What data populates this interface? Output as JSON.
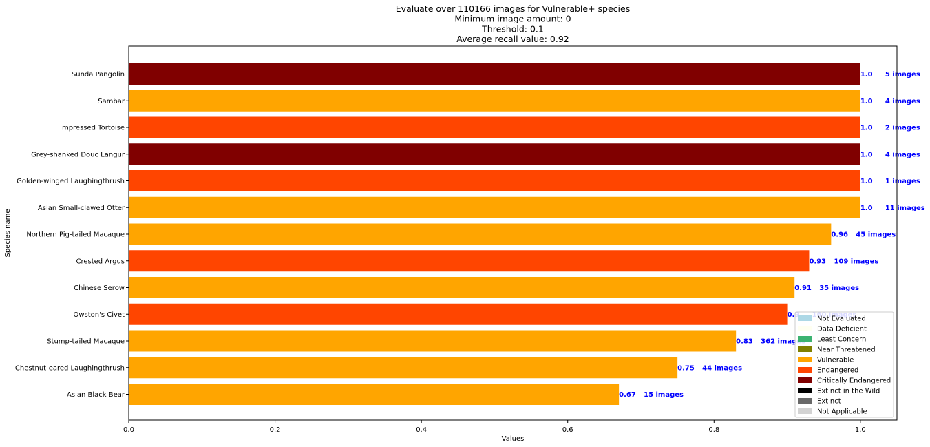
{
  "chart_data": {
    "type": "bar",
    "orientation": "horizontal",
    "title_lines": [
      "Evaluate over 110166 images for Vulnerable+ species",
      "Minimum image amount: 0",
      "Threshold:  0.1",
      "Average recall value: 0.92"
    ],
    "xlabel": "Values",
    "ylabel": "Species name",
    "xlim": [
      0,
      1.05
    ],
    "xticks": [
      0.0,
      0.2,
      0.4,
      0.6,
      0.8,
      1.0
    ],
    "xtick_labels": [
      "0.0",
      "0.2",
      "0.4",
      "0.6",
      "0.8",
      "1.0"
    ],
    "grid": false,
    "legend_position": "lower-right",
    "categories": [
      "Sunda Pangolin",
      "Sambar",
      "Impressed Tortoise",
      "Grey-shanked Douc Langur",
      "Golden-winged Laughingthrush",
      "Asian Small-clawed Otter",
      "Northern Pig-tailed Macaque",
      "Crested Argus",
      "Chinese Serow",
      "Owston's Civet",
      "Stump-tailed Macaque",
      "Chestnut-eared Laughingthrush",
      "Asian Black Bear"
    ],
    "values": [
      1.0,
      1.0,
      1.0,
      1.0,
      1.0,
      1.0,
      0.96,
      0.93,
      0.91,
      0.9,
      0.83,
      0.75,
      0.67
    ],
    "value_labels": [
      "1.0",
      "1.0",
      "1.0",
      "1.0",
      "1.0",
      "1.0",
      "0.96",
      "0.93",
      "0.91",
      "0.9",
      "0.83",
      "0.75",
      "0.67"
    ],
    "image_labels": [
      "5 images",
      "4 images",
      "2 images",
      "4 images",
      "1 images",
      "11 images",
      "45 images",
      "109 images",
      "35 images",
      "160 images",
      "362 images",
      "44 images",
      "15 images"
    ],
    "bar_status": [
      "Critically Endangered",
      "Vulnerable",
      "Endangered",
      "Critically Endangered",
      "Endangered",
      "Vulnerable",
      "Vulnerable",
      "Endangered",
      "Vulnerable",
      "Endangered",
      "Vulnerable",
      "Vulnerable",
      "Vulnerable"
    ],
    "legend": [
      {
        "label": "Not Evaluated",
        "color": "#add8e6"
      },
      {
        "label": "Data Deficient",
        "color": "#fffff0"
      },
      {
        "label": "Least Concern",
        "color": "#3cb371"
      },
      {
        "label": "Near Threatened",
        "color": "#808000"
      },
      {
        "label": "Vulnerable",
        "color": "#ffa500"
      },
      {
        "label": "Endangered",
        "color": "#ff4500"
      },
      {
        "label": "Critically Endangered",
        "color": "#800000"
      },
      {
        "label": "Extinct in the Wild",
        "color": "#000000"
      },
      {
        "label": "Extinct",
        "color": "#696969"
      },
      {
        "label": "Not Applicable",
        "color": "#d3d3d3"
      }
    ]
  }
}
